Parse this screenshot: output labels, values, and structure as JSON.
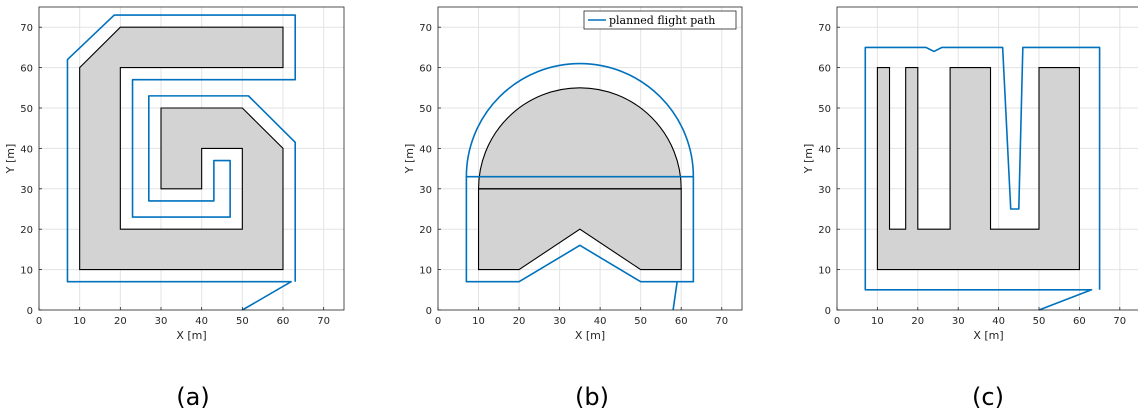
{
  "chart_data": [
    {
      "type": "line",
      "caption": "(a)",
      "xlabel": "X [m]",
      "ylabel": "Y [m]",
      "xlim": [
        0,
        75
      ],
      "ylim": [
        0,
        75
      ],
      "xticks": [
        0,
        10,
        20,
        30,
        40,
        50,
        60,
        70
      ],
      "yticks": [
        0,
        10,
        20,
        30,
        40,
        50,
        60,
        70
      ],
      "grid": true,
      "legend": null,
      "polygons": [
        [
          [
            10,
            10
          ],
          [
            60,
            10
          ],
          [
            60,
            40
          ],
          [
            50,
            50
          ],
          [
            30,
            50
          ],
          [
            30,
            30
          ],
          [
            40,
            30
          ],
          [
            40,
            40
          ],
          [
            50,
            40
          ],
          [
            50,
            20
          ],
          [
            20,
            20
          ],
          [
            20,
            60
          ],
          [
            60,
            60
          ],
          [
            60,
            70
          ],
          [
            20,
            70
          ],
          [
            10,
            60
          ]
        ]
      ],
      "series": [
        {
          "color": "#0072BD",
          "points": [
            [
              50,
              0
            ],
            [
              62,
              7
            ],
            [
              7,
              7
            ],
            [
              7,
              62
            ],
            [
              18.5,
              73
            ],
            [
              63,
              73
            ],
            [
              63,
              57
            ],
            [
              23,
              57
            ],
            [
              23,
              23
            ],
            [
              47,
              23
            ],
            [
              47,
              37
            ],
            [
              43,
              37
            ],
            [
              43,
              27
            ],
            [
              27,
              27
            ],
            [
              27,
              53
            ],
            [
              51.5,
              53
            ],
            [
              63,
              41.5
            ],
            [
              63,
              7
            ]
          ]
        }
      ]
    },
    {
      "type": "line",
      "caption": "(b)",
      "xlabel": "X [m]",
      "ylabel": "Y [m]",
      "xlim": [
        0,
        75
      ],
      "ylim": [
        0,
        75
      ],
      "xticks": [
        0,
        10,
        20,
        30,
        40,
        50,
        60,
        70
      ],
      "yticks": [
        0,
        10,
        20,
        30,
        40,
        50,
        60,
        70
      ],
      "grid": true,
      "legend": {
        "position": "top-right",
        "entries": [
          "planned flight path"
        ]
      },
      "polygons": [
        [
          [
            10,
            30
          ],
          [
            60,
            30
          ],
          [
            60,
            10
          ],
          [
            50,
            10
          ],
          [
            35,
            20
          ],
          [
            20,
            10
          ],
          [
            10,
            10
          ]
        ]
      ],
      "semicircle": {
        "center": [
          35,
          30
        ],
        "radius": 25
      },
      "divider": [
        [
          10,
          30
        ],
        [
          60,
          30
        ]
      ],
      "series": [
        {
          "name": "planned flight path",
          "color": "#0072BD",
          "points": [
            [
              58,
              0
            ],
            [
              59,
              7
            ],
            [
              50,
              7
            ],
            [
              35,
              16
            ],
            [
              20,
              7
            ],
            [
              7,
              7
            ],
            [
              7,
              30
            ],
            [
              7,
              33
            ],
            [
              63,
              33
            ],
            [
              63,
              30
            ],
            [
              63,
              7
            ],
            [
              59,
              7
            ]
          ],
          "arc": {
            "center": [
              35,
              30
            ],
            "radius": 28
          }
        }
      ]
    },
    {
      "type": "line",
      "caption": "(c)",
      "xlabel": "X [m]",
      "ylabel": "Y [m]",
      "xlim": [
        0,
        75
      ],
      "ylim": [
        0,
        75
      ],
      "xticks": [
        0,
        10,
        20,
        30,
        40,
        50,
        60,
        70
      ],
      "yticks": [
        0,
        10,
        20,
        30,
        40,
        50,
        60,
        70
      ],
      "grid": true,
      "legend": null,
      "polygons": [
        [
          [
            10,
            10
          ],
          [
            60,
            10
          ],
          [
            60,
            60
          ],
          [
            50,
            60
          ],
          [
            50,
            20
          ],
          [
            38,
            20
          ],
          [
            38,
            60
          ],
          [
            28,
            60
          ],
          [
            28,
            20
          ],
          [
            20,
            20
          ],
          [
            20,
            60
          ],
          [
            17,
            60
          ],
          [
            17,
            20
          ],
          [
            13,
            20
          ],
          [
            13,
            60
          ],
          [
            10,
            60
          ]
        ]
      ],
      "series": [
        {
          "color": "#0072BD",
          "points": [
            [
              50,
              0
            ],
            [
              63,
              5
            ],
            [
              7,
              5
            ],
            [
              7,
              65
            ],
            [
              15,
              65
            ],
            [
              22,
              65
            ],
            [
              24,
              64
            ],
            [
              26,
              65
            ],
            [
              41,
              65
            ],
            [
              43,
              25
            ],
            [
              45,
              25
            ],
            [
              46,
              65
            ],
            [
              65,
              65
            ],
            [
              65,
              5
            ]
          ]
        }
      ]
    }
  ]
}
